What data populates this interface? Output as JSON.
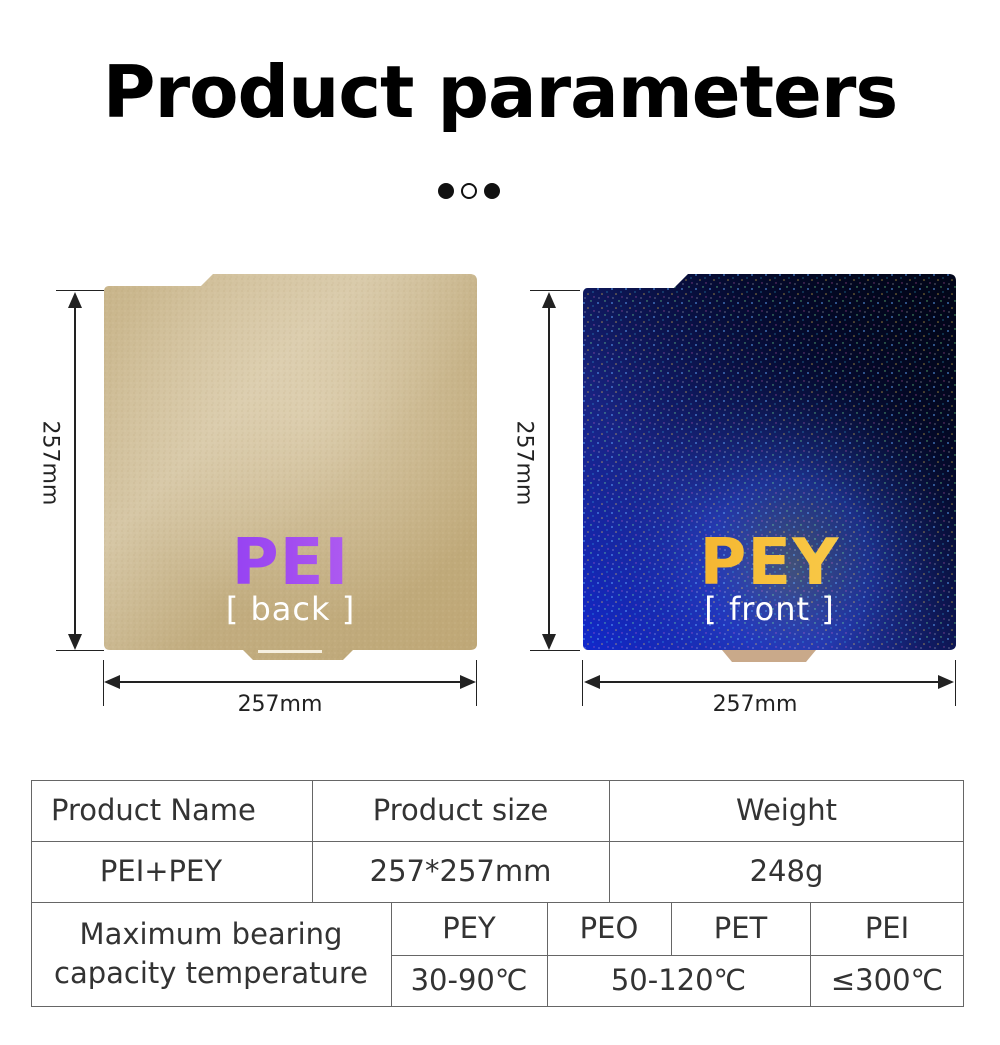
{
  "title": "Product parameters",
  "plates": {
    "left": {
      "name": "PEI",
      "side": "[ back ]",
      "height_label": "257mm",
      "width_label": "257mm"
    },
    "right": {
      "name": "PEY",
      "side": "[ front  ]",
      "height_label": "257mm",
      "width_label": "257mm"
    }
  },
  "colors": {
    "pei_text": "#8a3cf4",
    "pey_text": "#f6b22c",
    "gold_plate": "#c9b48a",
    "holographic_base": "#02061a"
  },
  "table": {
    "headers": [
      "Product Name",
      "Product size",
      "Weight"
    ],
    "row": [
      "PEI+PEY",
      "257*257mm",
      "248g"
    ],
    "temp_label": "Maximum bearing capacity temperature",
    "materials": [
      "PEY",
      "PEO",
      "PET",
      "PEI"
    ],
    "temps": [
      "30-90℃",
      "50-120℃",
      "≤300℃"
    ]
  }
}
